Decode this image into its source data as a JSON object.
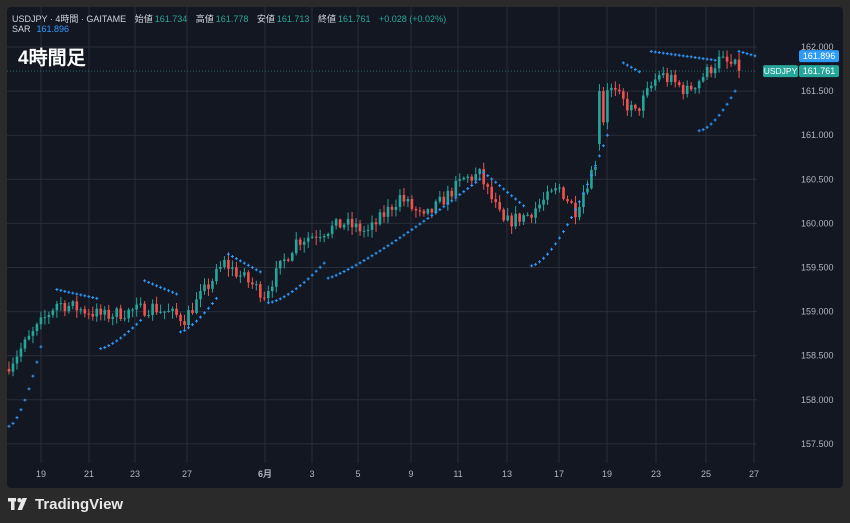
{
  "header": {
    "symbol_line": "USDJPY · 4時間 · GAITAME",
    "open_label": "始値",
    "open_value": "161.734",
    "high_label": "高値",
    "high_value": "161.778",
    "low_label": "安値",
    "low_value": "161.713",
    "close_label": "終値",
    "close_value": "161.761",
    "change": "+0.028 (+0.02%)",
    "sar_label": "SAR",
    "sar_value": "161.896"
  },
  "timeframe_label": "4時間足",
  "footer": {
    "brand": "TradingView"
  },
  "colors": {
    "bg": "#131722",
    "up": "#26a69a",
    "down": "#ef5350",
    "sar": "#2e9bff",
    "grid": "#2a2e39",
    "text": "#b2b5be"
  },
  "chart_data": {
    "type": "candlestick",
    "title": "",
    "ylim": [
      157.2,
      162.1
    ],
    "y_ticks": [
      "162.000",
      "161.500",
      "161.000",
      "160.500",
      "160.000",
      "159.500",
      "159.000",
      "158.500",
      "158.000",
      "157.500"
    ],
    "x_ticks": [
      "19",
      "21",
      "23",
      "27",
      "6月",
      "3",
      "5",
      "9",
      "11",
      "13",
      "17",
      "19",
      "23",
      "25",
      "27"
    ],
    "price_badges": [
      {
        "label": "",
        "value": "161.896",
        "color": "#2e9bff"
      },
      {
        "label": "USDJPY",
        "value": "161.761",
        "color": "#26a69a"
      }
    ],
    "grid": true,
    "close_segments": [
      {
        "from": 0,
        "to": 12,
        "start": 158.4,
        "end": 159.1
      },
      {
        "from": 12,
        "to": 24,
        "start": 159.1,
        "end": 158.95
      },
      {
        "from": 24,
        "to": 36,
        "start": 158.95,
        "end": 159.05
      },
      {
        "from": 36,
        "to": 44,
        "start": 159.05,
        "end": 158.92
      },
      {
        "from": 44,
        "to": 54,
        "start": 158.92,
        "end": 159.55
      },
      {
        "from": 54,
        "to": 64,
        "start": 159.55,
        "end": 159.2
      },
      {
        "from": 64,
        "to": 72,
        "start": 159.2,
        "end": 159.8
      },
      {
        "from": 72,
        "to": 84,
        "start": 159.8,
        "end": 160.0
      },
      {
        "from": 84,
        "to": 90,
        "start": 160.0,
        "end": 159.9
      },
      {
        "from": 90,
        "to": 98,
        "start": 159.9,
        "end": 160.3
      },
      {
        "from": 98,
        "to": 104,
        "start": 160.3,
        "end": 160.05
      },
      {
        "from": 104,
        "to": 114,
        "start": 160.05,
        "end": 160.5
      },
      {
        "from": 114,
        "to": 118,
        "start": 160.5,
        "end": 160.55
      },
      {
        "from": 118,
        "to": 124,
        "start": 160.55,
        "end": 160.0
      },
      {
        "from": 124,
        "to": 130,
        "start": 160.0,
        "end": 160.1
      },
      {
        "from": 130,
        "to": 138,
        "start": 160.1,
        "end": 160.4
      },
      {
        "from": 138,
        "to": 142,
        "start": 160.4,
        "end": 160.15
      },
      {
        "from": 142,
        "to": 148,
        "start": 160.15,
        "end": 160.8
      },
      {
        "from": 148,
        "to": 150,
        "start": 160.8,
        "end": 161.55
      },
      {
        "from": 150,
        "to": 157,
        "start": 161.55,
        "end": 161.25
      },
      {
        "from": 157,
        "to": 163,
        "start": 161.25,
        "end": 161.7
      },
      {
        "from": 163,
        "to": 170,
        "start": 161.7,
        "end": 161.5
      },
      {
        "from": 170,
        "to": 178,
        "start": 161.5,
        "end": 161.85
      },
      {
        "from": 178,
        "to": 183,
        "start": 161.85,
        "end": 161.76
      }
    ],
    "sar_segments": [
      {
        "from": 0,
        "to": 8,
        "start": 157.7,
        "end": 158.6,
        "curve": 0.6
      },
      {
        "from": 12,
        "to": 22,
        "start": 159.25,
        "end": 159.15,
        "curve": 0
      },
      {
        "from": 23,
        "to": 33,
        "start": 158.58,
        "end": 158.9,
        "curve": 0.4
      },
      {
        "from": 34,
        "to": 42,
        "start": 159.35,
        "end": 159.2,
        "curve": 0
      },
      {
        "from": 43,
        "to": 52,
        "start": 158.77,
        "end": 159.15,
        "curve": 0.4
      },
      {
        "from": 55,
        "to": 63,
        "start": 159.65,
        "end": 159.45,
        "curve": 0
      },
      {
        "from": 65,
        "to": 79,
        "start": 159.1,
        "end": 159.55,
        "curve": 0.5
      },
      {
        "from": 80,
        "to": 118,
        "start": 159.38,
        "end": 160.5,
        "curve": 0.2
      },
      {
        "from": 119,
        "to": 129,
        "start": 160.58,
        "end": 160.2,
        "curve": 0
      },
      {
        "from": 131,
        "to": 150,
        "start": 159.52,
        "end": 161.0,
        "curve": 0.55
      },
      {
        "from": 154,
        "to": 158,
        "start": 161.82,
        "end": 161.72,
        "curve": 0
      },
      {
        "from": 161,
        "to": 177,
        "start": 161.95,
        "end": 161.85,
        "curve": 0
      },
      {
        "from": 173,
        "to": 182,
        "start": 161.05,
        "end": 161.5,
        "curve": 0.6
      },
      {
        "from": 183,
        "to": 187,
        "start": 161.95,
        "end": 161.9,
        "curve": 0
      }
    ],
    "last_sar": 161.896
  }
}
